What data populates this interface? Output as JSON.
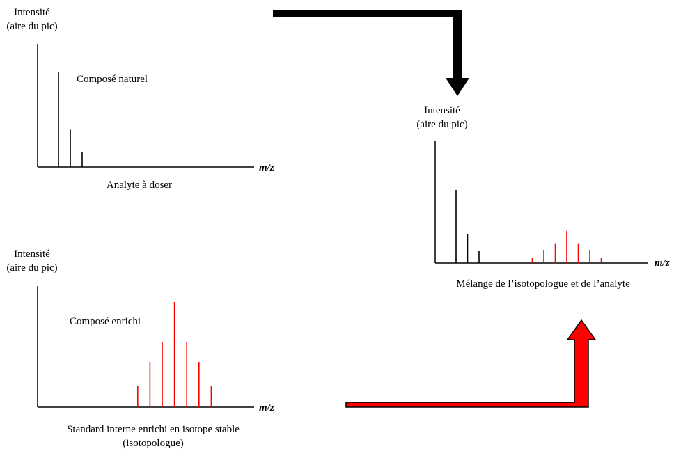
{
  "colors": {
    "natural": "#000000",
    "enriched": "#ff0000",
    "arrow_border": "#000000"
  },
  "arrow_icons": [
    "arrow-down-icon",
    "arrow-up-icon"
  ],
  "panels": {
    "analyte": {
      "ylabel_line1": "Intensité",
      "ylabel_line2": "(aire du pic)",
      "xlabel": "m/z",
      "annotation": "Composé naturel",
      "caption": "Analyte à doser",
      "peaks": [
        {
          "mz": 0,
          "intensity": 1.0
        },
        {
          "mz": 1,
          "intensity": 0.39
        },
        {
          "mz": 2,
          "intensity": 0.16
        }
      ]
    },
    "standard": {
      "ylabel_line1": "Intensité",
      "ylabel_line2": "(aire du pic)",
      "xlabel": "m/z",
      "annotation": "Composé enrichi",
      "caption_line1": "Standard interne enrichi en isotope stable",
      "caption_line2": "(isotopologue)",
      "peaks": [
        {
          "mz": 8,
          "intensity": 0.2
        },
        {
          "mz": 9,
          "intensity": 0.43
        },
        {
          "mz": 10,
          "intensity": 0.62
        },
        {
          "mz": 11,
          "intensity": 1.0
        },
        {
          "mz": 12,
          "intensity": 0.62
        },
        {
          "mz": 13,
          "intensity": 0.43
        },
        {
          "mz": 14,
          "intensity": 0.2
        }
      ]
    },
    "mixture": {
      "ylabel_line1": "Intensité",
      "ylabel_line2": "(aire du pic)",
      "xlabel": "m/z",
      "caption": "Mélange de l’isotopologue et de l’analyte",
      "natural_peaks": [
        {
          "mz": 0,
          "intensity": 1.0
        },
        {
          "mz": 1,
          "intensity": 0.4
        },
        {
          "mz": 2,
          "intensity": 0.17
        }
      ],
      "enriched_peaks": [
        {
          "mz": 7,
          "intensity": 0.07
        },
        {
          "mz": 8,
          "intensity": 0.18
        },
        {
          "mz": 9,
          "intensity": 0.27
        },
        {
          "mz": 10,
          "intensity": 0.44
        },
        {
          "mz": 11,
          "intensity": 0.27
        },
        {
          "mz": 12,
          "intensity": 0.18
        },
        {
          "mz": 13,
          "intensity": 0.07
        }
      ]
    }
  }
}
